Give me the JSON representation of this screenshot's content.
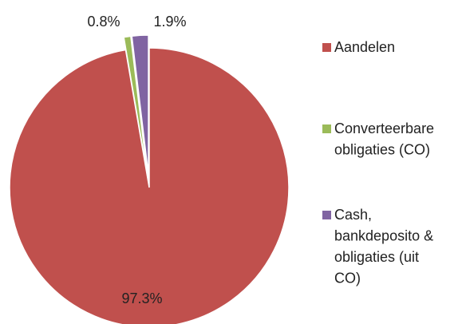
{
  "chart_data": {
    "type": "pie",
    "categories": [
      "Aandelen",
      "Converteerbare obligaties (CO)",
      "Cash, bankdeposito & obligaties (uit CO)"
    ],
    "values": [
      97.3,
      0.8,
      1.9
    ],
    "value_labels": [
      "97.3%",
      "0.8%",
      "1.9%"
    ],
    "colors": [
      "#c0504d",
      "#9bbb59",
      "#8064a2"
    ],
    "legend": "right"
  }
}
